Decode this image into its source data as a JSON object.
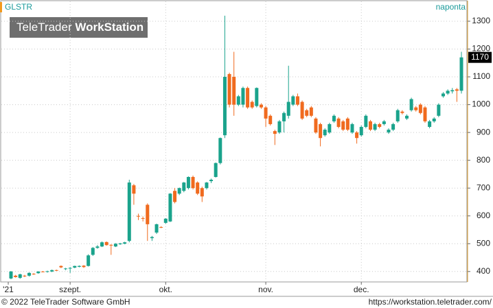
{
  "chart_data": {
    "type": "candlestick",
    "title": "GLSTR",
    "period": "naponta",
    "watermark_light": "TeleTrader",
    "watermark_bold": "WorkStation",
    "copyright": "© 2022 TeleTrader Software GmbH",
    "url": "https://workstation.teletrader.com/",
    "up_color": "#1aa38c",
    "down_color": "#f06a1e",
    "grid": true,
    "ylim": [
      365,
      1327
    ],
    "yticks": [
      400,
      500,
      600,
      700,
      800,
      900,
      1000,
      1100,
      1200,
      1300
    ],
    "categories": [
      "'21",
      null,
      null,
      null,
      null,
      null,
      null,
      null,
      null,
      null,
      null,
      null,
      null,
      "szept.",
      null,
      null,
      null,
      null,
      null,
      null,
      null,
      null,
      null,
      null,
      null,
      null,
      null,
      null,
      null,
      null,
      null,
      null,
      null,
      null,
      "okt.",
      null,
      null,
      null,
      null,
      null,
      null,
      null,
      null,
      null,
      null,
      null,
      null,
      null,
      null,
      null,
      null,
      null,
      null,
      null,
      null,
      null,
      "nov.",
      null,
      null,
      null,
      null,
      null,
      null,
      null,
      null,
      null,
      null,
      null,
      null,
      null,
      null,
      null,
      null,
      null,
      null,
      null,
      null,
      "dec.",
      null,
      null,
      null,
      null,
      null,
      null,
      null,
      null,
      null,
      null,
      null,
      null,
      null,
      null,
      null,
      null,
      null,
      null,
      null,
      null,
      null,
      null
    ],
    "open": [
      375,
      385,
      377,
      385,
      385,
      392,
      394,
      400,
      399,
      400,
      405,
      420,
      410,
      412,
      414,
      417,
      421,
      420,
      460,
      485,
      490,
      506,
      496,
      490,
      498,
      500,
      510,
      710,
      600,
      592,
      640,
      520,
      540,
      560,
      575,
      580,
      690,
      680,
      690,
      700,
      740,
      720,
      700,
      700,
      725,
      740,
      790,
      890,
      1110,
      1100,
      1000,
      1000,
      1060,
      1010,
      995,
      1000,
      990,
      960,
      905,
      900,
      940,
      960,
      1000,
      1030,
      1010,
      980,
      990,
      950,
      930,
      890,
      900,
      940,
      950,
      940,
      950,
      900,
      900,
      890,
      920,
      940,
      910,
      930,
      930,
      900,
      910,
      940,
      975,
      950,
      980,
      990,
      1000,
      990,
      920,
      940,
      960,
      1030,
      1040,
      1048,
      1055,
      1050
    ],
    "high": [
      402,
      388,
      392,
      388,
      397,
      394,
      401,
      402,
      403,
      407,
      407,
      422,
      413,
      416,
      421,
      422,
      423,
      462,
      488,
      495,
      508,
      508,
      498,
      502,
      503,
      507,
      730,
      715,
      608,
      598,
      645,
      528,
      572,
      563,
      592,
      682,
      700,
      702,
      722,
      742,
      745,
      724,
      705,
      722,
      734,
      792,
      882,
      1320,
      1115,
      1190,
      1035,
      1065,
      1065,
      1015,
      1062,
      1005,
      995,
      965,
      910,
      945,
      975,
      1140,
      1035,
      1040,
      1015,
      985,
      995,
      955,
      935,
      915,
      935,
      965,
      955,
      945,
      955,
      935,
      905,
      925,
      965,
      945,
      935,
      935,
      945,
      915,
      935,
      985,
      980,
      965,
      1025,
      995,
      1005,
      995,
      945,
      955,
      1005,
      1045,
      1055,
      1060,
      1060,
      1190
    ],
    "low": [
      372,
      378,
      374,
      380,
      382,
      388,
      392,
      397,
      396,
      398,
      402,
      412,
      405,
      395,
      412,
      415,
      413,
      418,
      456,
      482,
      488,
      493,
      460,
      488,
      496,
      498,
      505,
      640,
      585,
      580,
      510,
      510,
      535,
      556,
      572,
      578,
      645,
      675,
      685,
      695,
      695,
      675,
      650,
      695,
      718,
      738,
      785,
      880,
      990,
      960,
      995,
      990,
      985,
      985,
      990,
      985,
      920,
      925,
      855,
      895,
      900,
      950,
      995,
      995,
      945,
      955,
      955,
      895,
      850,
      885,
      895,
      935,
      915,
      905,
      905,
      895,
      860,
      885,
      915,
      905,
      905,
      915,
      925,
      895,
      905,
      935,
      965,
      945,
      975,
      975,
      965,
      935,
      915,
      935,
      955,
      1025,
      1035,
      1040,
      1010,
      1040
    ],
    "close": [
      400,
      380,
      390,
      383,
      395,
      390,
      400,
      399,
      401,
      405,
      404,
      415,
      411,
      413,
      420,
      420,
      416,
      458,
      485,
      490,
      505,
      495,
      494,
      500,
      501,
      505,
      720,
      680,
      598,
      590,
      570,
      524,
      570,
      558,
      590,
      680,
      650,
      700,
      720,
      740,
      700,
      680,
      670,
      720,
      730,
      790,
      880,
      1100,
      1000,
      1000,
      1030,
      1060,
      990,
      990,
      1060,
      990,
      950,
      930,
      895,
      940,
      970,
      1010,
      1030,
      1000,
      950,
      960,
      960,
      900,
      880,
      910,
      930,
      960,
      920,
      910,
      910,
      930,
      880,
      920,
      960,
      910,
      930,
      920,
      940,
      910,
      930,
      980,
      970,
      960,
      1020,
      980,
      970,
      940,
      940,
      950,
      1000,
      1040,
      1050,
      1052,
      1050,
      1170
    ]
  }
}
